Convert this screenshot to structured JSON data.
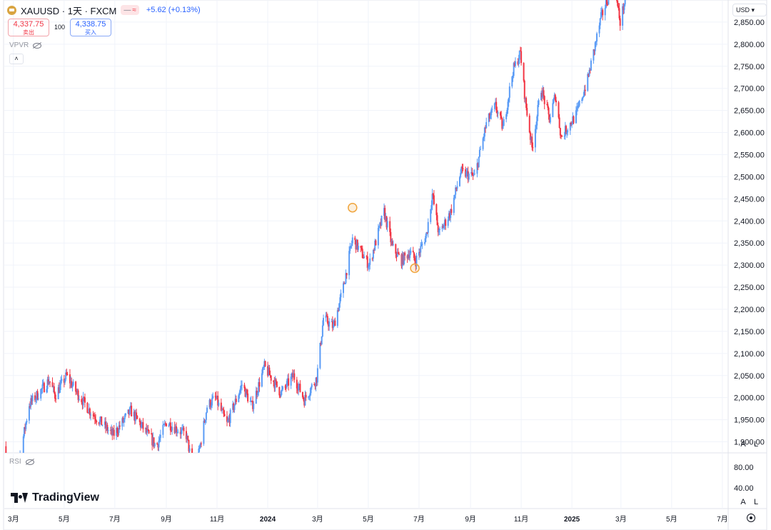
{
  "header": {
    "symbol_title": "XAUUSD · 1天 · FXCM",
    "toggle_dash": "—",
    "toggle_wave": "≈",
    "change_text": "+5.62 (+0.13%)",
    "sell_price": "4,337.75",
    "sell_label": "卖出",
    "spread": "100",
    "buy_price": "4,338.75",
    "buy_label": "买入",
    "vpvr_label": "VPVR",
    "collapse_glyph": "˄"
  },
  "axis": {
    "currency_button": "USD ▾",
    "auto_label": "A",
    "log_label": "L",
    "rsi_auto_label": "A",
    "rsi_log_label": "L"
  },
  "rsi": {
    "label": "RSI",
    "ticks": [
      "80.00",
      "40.00"
    ]
  },
  "branding": {
    "name": "TradingView"
  },
  "colors": {
    "up": "#5b9cf6",
    "down": "#f23645",
    "marker": "#f0a53e",
    "grid": "#f0f3fa",
    "axis_text": "#131722"
  },
  "chart_data": {
    "type": "candlestick",
    "symbol": "XAUUSD",
    "interval": "1天",
    "source": "FXCM",
    "y_axis": {
      "ticks": [
        "2,850.00",
        "2,800.00",
        "2,750.00",
        "2,700.00",
        "2,650.00",
        "2,600.00",
        "2,550.00",
        "2,500.00",
        "2,450.00",
        "2,400.00",
        "2,350.00",
        "2,300.00",
        "2,250.00",
        "2,200.00",
        "2,150.00",
        "2,100.00",
        "2,050.00",
        "2,000.00",
        "1,950.00",
        "1,900.00"
      ],
      "range": [
        1875,
        2900
      ]
    },
    "x_axis": {
      "range": [
        "2023-02-18",
        "2025-07-08"
      ],
      "ticks": [
        {
          "label": "3月",
          "date": "2023-03-01",
          "bold": false
        },
        {
          "label": "5月",
          "date": "2023-05-01",
          "bold": false
        },
        {
          "label": "7月",
          "date": "2023-07-01",
          "bold": false
        },
        {
          "label": "9月",
          "date": "2023-09-01",
          "bold": false
        },
        {
          "label": "11月",
          "date": "2023-11-01",
          "bold": false
        },
        {
          "label": "2024",
          "date": "2024-01-01",
          "bold": true
        },
        {
          "label": "3月",
          "date": "2024-03-01",
          "bold": false
        },
        {
          "label": "5月",
          "date": "2024-05-01",
          "bold": false
        },
        {
          "label": "7月",
          "date": "2024-07-01",
          "bold": false
        },
        {
          "label": "9月",
          "date": "2024-09-01",
          "bold": false
        },
        {
          "label": "11月",
          "date": "2024-11-01",
          "bold": false
        },
        {
          "label": "2025",
          "date": "2025-01-01",
          "bold": true
        },
        {
          "label": "3月",
          "date": "2025-03-01",
          "bold": false
        },
        {
          "label": "5月",
          "date": "2025-05-01",
          "bold": false
        },
        {
          "label": "7月",
          "date": "2025-07-01",
          "bold": false
        }
      ]
    },
    "price_path": [
      {
        "date": "2023-02-18",
        "close": 1890
      },
      {
        "date": "2023-02-28",
        "close": 1820
      },
      {
        "date": "2023-03-08",
        "close": 1860
      },
      {
        "date": "2023-03-20",
        "close": 1985
      },
      {
        "date": "2023-04-05",
        "close": 2020
      },
      {
        "date": "2023-04-13",
        "close": 2040
      },
      {
        "date": "2023-04-20",
        "close": 2005
      },
      {
        "date": "2023-05-04",
        "close": 2050
      },
      {
        "date": "2023-05-15",
        "close": 2015
      },
      {
        "date": "2023-06-01",
        "close": 1970
      },
      {
        "date": "2023-06-29",
        "close": 1915
      },
      {
        "date": "2023-07-20",
        "close": 1970
      },
      {
        "date": "2023-08-20",
        "close": 1890
      },
      {
        "date": "2023-09-01",
        "close": 1945
      },
      {
        "date": "2023-09-25",
        "close": 1915
      },
      {
        "date": "2023-10-05",
        "close": 1820
      },
      {
        "date": "2023-10-20",
        "close": 1980
      },
      {
        "date": "2023-10-30",
        "close": 2000
      },
      {
        "date": "2023-11-13",
        "close": 1940
      },
      {
        "date": "2023-12-01",
        "close": 2030
      },
      {
        "date": "2023-12-13",
        "close": 1980
      },
      {
        "date": "2023-12-28",
        "close": 2070
      },
      {
        "date": "2024-01-17",
        "close": 2010
      },
      {
        "date": "2024-02-01",
        "close": 2050
      },
      {
        "date": "2024-02-14",
        "close": 1995
      },
      {
        "date": "2024-02-29",
        "close": 2045
      },
      {
        "date": "2024-03-08",
        "close": 2180
      },
      {
        "date": "2024-03-20",
        "close": 2160
      },
      {
        "date": "2024-04-01",
        "close": 2250
      },
      {
        "date": "2024-04-12",
        "close": 2360
      },
      {
        "date": "2024-04-22",
        "close": 2330
      },
      {
        "date": "2024-05-02",
        "close": 2300
      },
      {
        "date": "2024-05-20",
        "close": 2420
      },
      {
        "date": "2024-05-30",
        "close": 2340
      },
      {
        "date": "2024-06-10",
        "close": 2310
      },
      {
        "date": "2024-06-20",
        "close": 2330
      },
      {
        "date": "2024-06-27",
        "close": 2310
      },
      {
        "date": "2024-07-10",
        "close": 2370
      },
      {
        "date": "2024-07-17",
        "close": 2460
      },
      {
        "date": "2024-07-25",
        "close": 2370
      },
      {
        "date": "2024-08-08",
        "close": 2420
      },
      {
        "date": "2024-08-20",
        "close": 2510
      },
      {
        "date": "2024-09-06",
        "close": 2500
      },
      {
        "date": "2024-09-20",
        "close": 2620
      },
      {
        "date": "2024-10-01",
        "close": 2660
      },
      {
        "date": "2024-10-10",
        "close": 2610
      },
      {
        "date": "2024-10-22",
        "close": 2740
      },
      {
        "date": "2024-10-31",
        "close": 2780
      },
      {
        "date": "2024-11-06",
        "close": 2670
      },
      {
        "date": "2024-11-14",
        "close": 2565
      },
      {
        "date": "2024-11-25",
        "close": 2700
      },
      {
        "date": "2024-12-05",
        "close": 2630
      },
      {
        "date": "2024-12-12",
        "close": 2685
      },
      {
        "date": "2024-12-19",
        "close": 2590
      },
      {
        "date": "2025-01-06",
        "close": 2640
      },
      {
        "date": "2025-01-20",
        "close": 2720
      },
      {
        "date": "2025-02-05",
        "close": 2860
      },
      {
        "date": "2025-02-20",
        "close": 2940
      },
      {
        "date": "2025-02-28",
        "close": 2850
      },
      {
        "date": "2025-03-07",
        "close": 2910
      },
      {
        "date": "2025-03-13",
        "close": 2950
      }
    ],
    "annotations": [
      {
        "type": "circle-marker",
        "date": "2024-04-12",
        "price": 2430
      },
      {
        "type": "circle-marker",
        "date": "2024-06-26",
        "price": 2293
      }
    ]
  }
}
